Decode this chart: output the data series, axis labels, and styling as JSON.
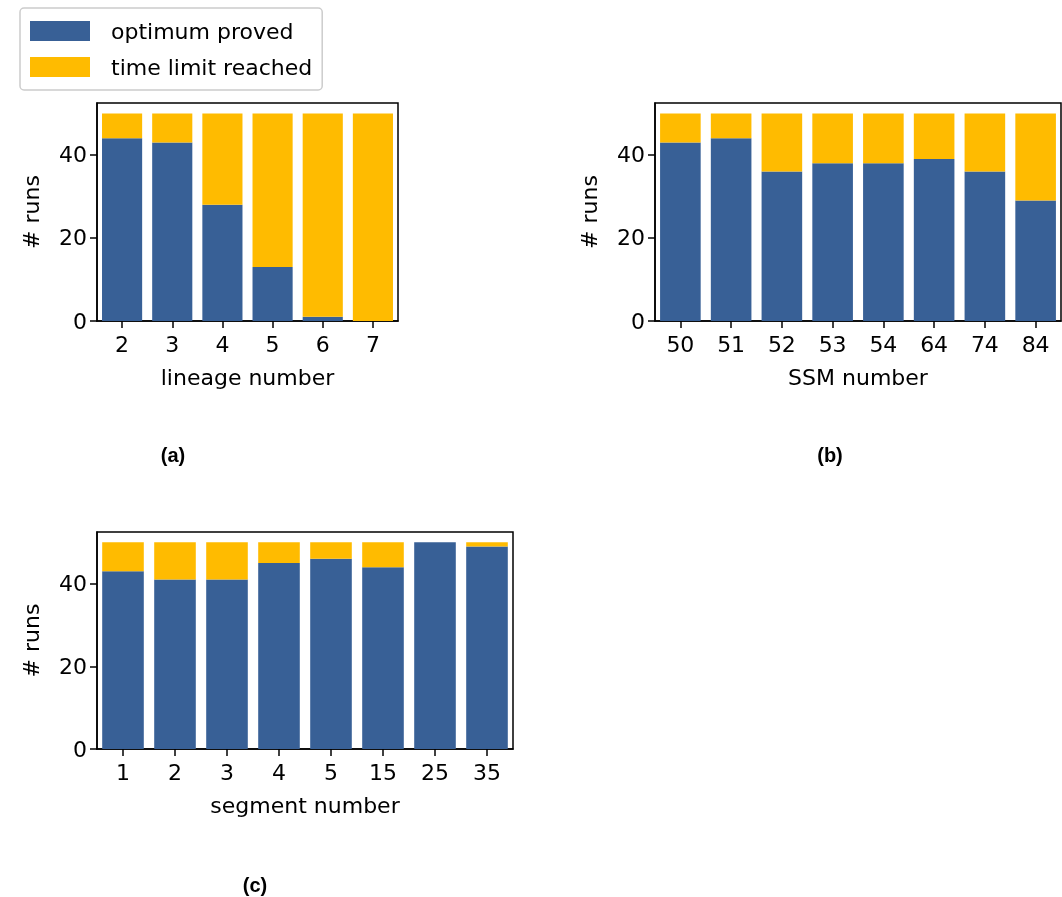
{
  "chart_data": [
    {
      "type": "bar",
      "title": "(a)",
      "xlabel": "lineage number",
      "ylabel": "# runs",
      "categories": [
        "2",
        "3",
        "4",
        "5",
        "6",
        "7"
      ],
      "stacked": true,
      "legend": "top left",
      "grid": false,
      "ylim": [
        0,
        52.5
      ],
      "yticks": [
        0,
        20,
        40
      ],
      "series": [
        {
          "name": "optimum proved",
          "color": "#386096",
          "values": [
            44,
            43,
            28,
            13,
            1,
            0
          ]
        },
        {
          "name": "time limit reached",
          "color": "#ffbb00",
          "values": [
            6,
            7,
            22,
            37,
            49,
            50
          ]
        }
      ]
    },
    {
      "type": "bar",
      "title": "(b)",
      "xlabel": "SSM number",
      "ylabel": "# runs",
      "categories": [
        "50",
        "51",
        "52",
        "53",
        "54",
        "64",
        "74",
        "84"
      ],
      "stacked": true,
      "grid": false,
      "ylim": [
        0,
        52.5
      ],
      "yticks": [
        0,
        20,
        40
      ],
      "series": [
        {
          "color": "#386096",
          "values": [
            43,
            44,
            36,
            38,
            38,
            39,
            36,
            29
          ]
        },
        {
          "color": "#ffbb00",
          "values": [
            7,
            6,
            14,
            12,
            12,
            11,
            14,
            21
          ]
        }
      ]
    },
    {
      "type": "bar",
      "title": "(c)",
      "xlabel": "segment number",
      "ylabel": "# runs",
      "categories": [
        "1",
        "2",
        "3",
        "4",
        "5",
        "15",
        "25",
        "35"
      ],
      "stacked": true,
      "grid": false,
      "ylim": [
        0,
        52.5
      ],
      "yticks": [
        0,
        20,
        40
      ],
      "series": [
        {
          "color": "#386096",
          "values": [
            43,
            41,
            41,
            45,
            46,
            44,
            50,
            49
          ]
        },
        {
          "color": "#ffbb00",
          "values": [
            7,
            9,
            9,
            5,
            4,
            6,
            0,
            1
          ]
        }
      ]
    }
  ]
}
